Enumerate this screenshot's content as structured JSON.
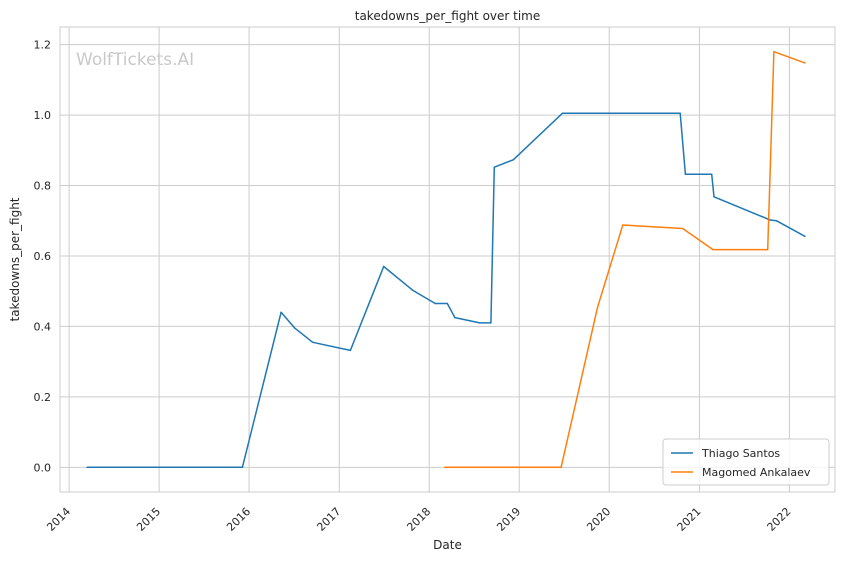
{
  "watermark": "WolfTickets.AI",
  "chart_data": {
    "type": "line",
    "title": "takedowns_per_fight over time",
    "xlabel": "Date",
    "ylabel": "takedowns_per_fight",
    "xlim": [
      "2013-11-25",
      "2022-07-05"
    ],
    "ylim": [
      -0.07,
      1.25
    ],
    "xticks": [
      "2014",
      "2015",
      "2016",
      "2017",
      "2018",
      "2019",
      "2020",
      "2021",
      "2022"
    ],
    "yticks": [
      "0.0",
      "0.2",
      "0.4",
      "0.6",
      "0.8",
      "1.0",
      "1.2"
    ],
    "grid": true,
    "legend_position": "bottom-right",
    "series": [
      {
        "name": "Thiago Santos",
        "color": "#1f77b4",
        "points": [
          [
            "2014-03-15",
            0.0
          ],
          [
            "2015-12-05",
            0.0
          ],
          [
            "2016-05-10",
            0.44
          ],
          [
            "2016-07-05",
            0.395
          ],
          [
            "2016-09-15",
            0.355
          ],
          [
            "2017-02-15",
            0.332
          ],
          [
            "2017-06-30",
            0.57
          ],
          [
            "2017-10-25",
            0.503
          ],
          [
            "2018-01-25",
            0.465
          ],
          [
            "2018-03-15",
            0.465
          ],
          [
            "2018-04-15",
            0.425
          ],
          [
            "2018-07-25",
            0.41
          ],
          [
            "2018-09-08",
            0.41
          ],
          [
            "2018-09-22",
            0.852
          ],
          [
            "2018-12-08",
            0.873
          ],
          [
            "2019-06-25",
            1.005
          ],
          [
            "2020-10-15",
            1.005
          ],
          [
            "2020-11-05",
            0.832
          ],
          [
            "2021-02-20",
            0.832
          ],
          [
            "2021-03-01",
            0.768
          ],
          [
            "2021-10-15",
            0.702
          ],
          [
            "2021-11-10",
            0.7
          ],
          [
            "2022-03-05",
            0.656
          ]
        ]
      },
      {
        "name": "Magomed Ankalaev",
        "color": "#ff7f0e",
        "points": [
          [
            "2018-03-05",
            0.0
          ],
          [
            "2019-06-20",
            0.0
          ],
          [
            "2019-11-15",
            0.455
          ],
          [
            "2020-02-25",
            0.688
          ],
          [
            "2020-10-25",
            0.678
          ],
          [
            "2021-02-25",
            0.618
          ],
          [
            "2021-10-05",
            0.618
          ],
          [
            "2021-10-30",
            1.18
          ],
          [
            "2022-03-05",
            1.148
          ]
        ]
      }
    ]
  }
}
